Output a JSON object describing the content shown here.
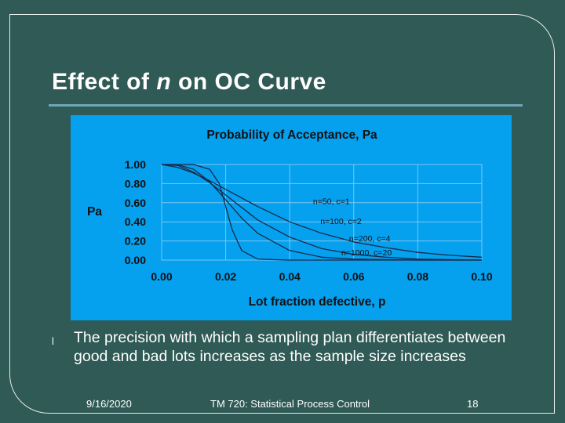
{
  "slide": {
    "title_pre": "Effect of ",
    "title_var": "n",
    "title_post": " on OC Curve",
    "bullet_marker": "l",
    "bullet_text": "The precision with which a sampling plan differentiates between good and bad lots increases as the sample size increases"
  },
  "footer": {
    "date": "9/16/2020",
    "course": "TM 720: Statistical Process Control",
    "page": "18"
  },
  "colors": {
    "background": "#2f5a55",
    "chart_background": "#05a0ee",
    "curve": "#1b2a4a",
    "axis_text": "#111111"
  },
  "chart_data": {
    "type": "line",
    "title": "Probability of Acceptance, Pa",
    "xlabel": "Lot fraction defective, p",
    "ylabel": "Pa",
    "xlim": [
      0,
      0.1
    ],
    "ylim": [
      0,
      1.0
    ],
    "x_ticks": [
      "0.00",
      "0.02",
      "0.04",
      "0.06",
      "0.08",
      "0.10"
    ],
    "y_ticks": [
      "0.00",
      "0.20",
      "0.40",
      "0.60",
      "0.80",
      "1.00"
    ],
    "grid": true,
    "series": [
      {
        "name": "n=50, c=1",
        "x": [
          0,
          0.005,
          0.01,
          0.015,
          0.02,
          0.03,
          0.04,
          0.05,
          0.06,
          0.07,
          0.08,
          0.09,
          0.1
        ],
        "values": [
          1.0,
          0.97,
          0.91,
          0.83,
          0.74,
          0.56,
          0.4,
          0.28,
          0.19,
          0.13,
          0.08,
          0.05,
          0.03
        ]
      },
      {
        "name": "n=100, c=2",
        "x": [
          0,
          0.005,
          0.01,
          0.015,
          0.02,
          0.03,
          0.04,
          0.05,
          0.06,
          0.07,
          0.08,
          0.09,
          0.1
        ],
        "values": [
          1.0,
          0.99,
          0.92,
          0.81,
          0.68,
          0.42,
          0.24,
          0.12,
          0.06,
          0.03,
          0.01,
          0.005,
          0.0
        ]
      },
      {
        "name": "n=200, c=4",
        "x": [
          0,
          0.005,
          0.01,
          0.015,
          0.02,
          0.025,
          0.03,
          0.04,
          0.05,
          0.06,
          0.08,
          0.1
        ],
        "values": [
          1.0,
          0.998,
          0.95,
          0.82,
          0.63,
          0.44,
          0.28,
          0.1,
          0.03,
          0.01,
          0.0,
          0.0
        ]
      },
      {
        "name": "n=1000, c=20",
        "x": [
          0,
          0.01,
          0.015,
          0.018,
          0.02,
          0.022,
          0.025,
          0.03,
          0.04,
          0.1
        ],
        "values": [
          1.0,
          1.0,
          0.95,
          0.8,
          0.56,
          0.32,
          0.1,
          0.01,
          0.0,
          0.0
        ]
      }
    ],
    "annotations": [
      {
        "text": "n=50, c=1",
        "x": 0.053,
        "y": 0.62
      },
      {
        "text": "n=100, c=2",
        "x": 0.056,
        "y": 0.41
      },
      {
        "text": "n=200, c=4",
        "x": 0.065,
        "y": 0.23
      },
      {
        "text": "n=1000, c=20",
        "x": 0.064,
        "y": 0.08
      }
    ]
  }
}
